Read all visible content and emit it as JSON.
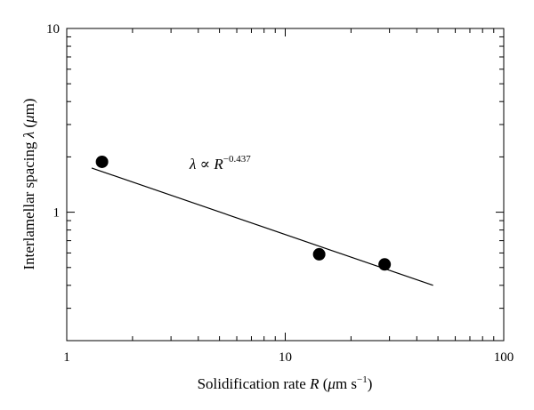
{
  "chart_data": {
    "type": "scatter",
    "x_scale": "log",
    "y_scale": "log",
    "xlim": [
      1,
      100
    ],
    "ylim": [
      0.2,
      10
    ],
    "x_ticks": [
      1,
      10,
      100
    ],
    "x_tick_labels": [
      "1",
      "10",
      "100"
    ],
    "y_ticks": [
      1,
      10
    ],
    "y_tick_labels": [
      "1",
      "10"
    ],
    "xlabel": {
      "prefix": "Solidification rate ",
      "var": "R",
      "open": " (",
      "unit_mu": "μ",
      "unit_m": "m s",
      "exp": "−1",
      "close": ")"
    },
    "ylabel": {
      "prefix": "Interlamellar spacing ",
      "var": "λ",
      "open": " (",
      "unit_mu": "μ",
      "unit_m": "m",
      "close": ")"
    },
    "points": {
      "x": [
        1.45,
        14.3,
        28.5
      ],
      "y": [
        1.88,
        0.59,
        0.52
      ]
    },
    "fit": {
      "x": [
        1.3,
        47.5
      ],
      "y": [
        1.74,
        0.4
      ],
      "exponent": -0.437
    },
    "annotation": {
      "lambda": "λ",
      "propto": " ∝ ",
      "var": "R",
      "exp": "−0.437"
    },
    "grid": false,
    "legend": "none",
    "colors": {
      "marker": "#000000",
      "line": "#000000",
      "background": "#ffffff"
    }
  }
}
